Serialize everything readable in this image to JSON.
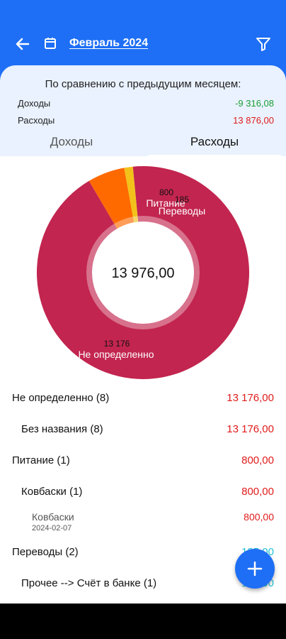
{
  "header": {
    "month": "Февраль 2024",
    "back_icon": "arrow-left-icon",
    "calendar_icon": "calendar-icon",
    "filter_icon": "filter-icon"
  },
  "comparison": {
    "title": "По сравнению с предыдущим месяцем:",
    "income_label": "Доходы",
    "income_value": "-9 316,08",
    "expense_label": "Расходы",
    "expense_value": "13 876,00"
  },
  "tabs": {
    "income": "Доходы",
    "expense": "Расходы",
    "active": "expense"
  },
  "chart_data": {
    "type": "pie",
    "total_label": "13 976,00",
    "slices": [
      {
        "name": "Не определенно",
        "value": 13176,
        "value_label": "13 176",
        "color": "#c2254f"
      },
      {
        "name": "Питание",
        "value": 800,
        "value_label": "800",
        "color": "#ff6a00"
      },
      {
        "name": "Переводы",
        "value": 185,
        "value_label": "185",
        "color": "#f2c21b"
      }
    ]
  },
  "list": {
    "row1": {
      "label": "Не определенно (8)",
      "value": "13 176,00"
    },
    "row2": {
      "label": "Без названия (8)",
      "value": "13 176,00"
    },
    "row3": {
      "label": "Питание (1)",
      "value": "800,00"
    },
    "row4": {
      "label": "Ковбаски (1)",
      "value": "800,00"
    },
    "row5": {
      "label": "Ковбаски",
      "date": "2024-02-07",
      "value": "800,00"
    },
    "row6": {
      "label": "Переводы (2)",
      "value": "185,00"
    },
    "row7": {
      "label": "Прочее --> Счёт в банке (1)",
      "value": "185,00"
    }
  },
  "fab": {
    "icon": "plus-icon"
  },
  "colors": {
    "primary": "#1e6ff5",
    "negative": "#e01b1b",
    "positive": "#1a9e34",
    "transfer": "#21c3d6"
  }
}
